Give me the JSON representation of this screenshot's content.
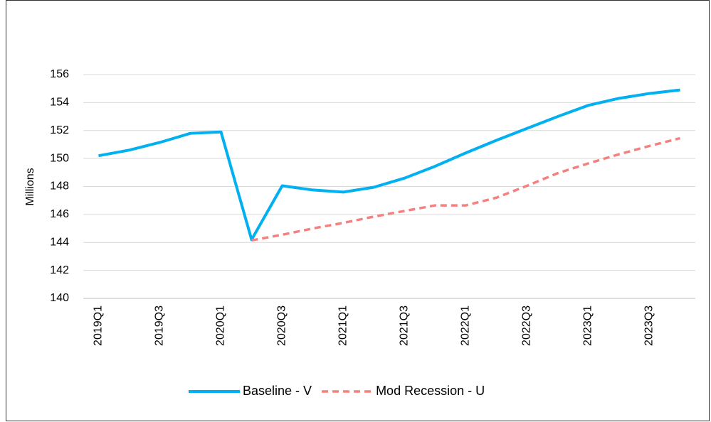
{
  "chart_data": {
    "type": "line",
    "categories": [
      "2019Q1",
      null,
      "2019Q3",
      null,
      "2020Q1",
      null,
      "2020Q3",
      null,
      "2021Q1",
      null,
      "2021Q3",
      null,
      "2022Q1",
      null,
      "2022Q3",
      null,
      "2023Q1",
      null,
      "2023Q3",
      null
    ],
    "series": [
      {
        "name": "Baseline - V",
        "color": "#00b0f0",
        "dashed": false,
        "values": [
          150.2,
          150.6,
          151.15,
          151.8,
          151.9,
          144.2,
          148.05,
          147.75,
          147.6,
          147.95,
          148.6,
          149.45,
          150.4,
          151.3,
          152.15,
          153.0,
          153.8,
          154.3,
          154.65,
          154.9
        ]
      },
      {
        "name": "Mod Recession - U",
        "color": "#f4817f",
        "dashed": true,
        "values": [
          null,
          null,
          null,
          null,
          null,
          144.15,
          144.55,
          145.0,
          145.4,
          145.85,
          146.25,
          146.65,
          146.65,
          147.2,
          148.05,
          148.95,
          149.65,
          150.3,
          150.9,
          151.45
        ]
      }
    ],
    "y_label": "Millions",
    "ylim": [
      140,
      156
    ],
    "yticks": [
      140,
      142,
      144,
      146,
      148,
      150,
      152,
      154,
      156
    ],
    "grid": true,
    "legend": "bottom"
  }
}
